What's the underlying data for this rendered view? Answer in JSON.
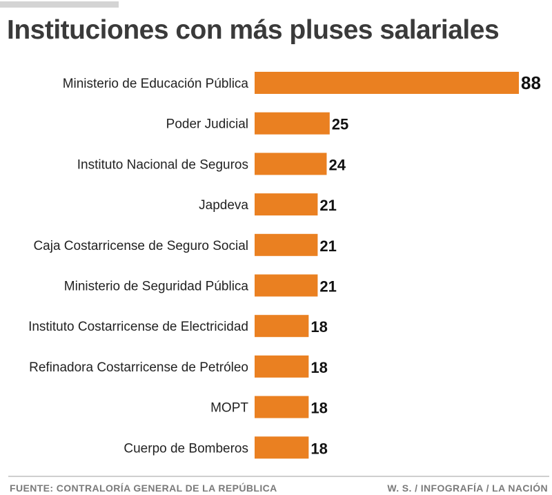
{
  "title": "Instituciones con más pluses salariales",
  "footer": {
    "source": "FUENTE: CONTRALORÍA GENERAL DE LA REPÚBLICA",
    "credit": "W. S. / INFOGRAFÍA / LA NACIÓN"
  },
  "colors": {
    "bar": "#ea8021",
    "title": "#3a3a3a",
    "footer": "#7a7a7a"
  },
  "chart_data": {
    "type": "bar",
    "orientation": "horizontal",
    "title": "Instituciones con más pluses salariales",
    "xlabel": "",
    "ylabel": "",
    "xlim": [
      0,
      88
    ],
    "grid": false,
    "legend": "none",
    "categories": [
      "Ministerio de Educación Pública",
      "Poder Judicial",
      "Instituto Nacional de Seguros",
      "Japdeva",
      "Caja Costarricense de Seguro Social",
      "Ministerio de Seguridad Pública",
      "Instituto Costarricense de Electricidad",
      "Refinadora Costarricense de Petróleo",
      "MOPT",
      "Cuerpo de Bomberos"
    ],
    "values": [
      88,
      25,
      24,
      21,
      21,
      21,
      18,
      18,
      18,
      18
    ]
  }
}
